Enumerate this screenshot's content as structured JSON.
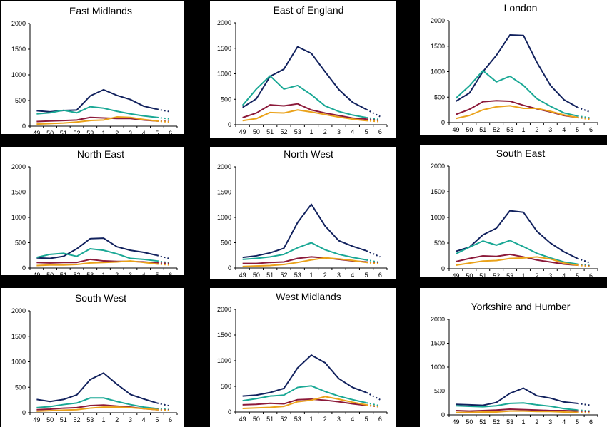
{
  "series_colors": [
    "#12225e",
    "#1aa895",
    "#8c1a3a",
    "#eaa21a"
  ],
  "chart_data": [
    {
      "type": "line",
      "title": "East Midlands",
      "categories": [
        "49",
        "50",
        "51",
        "52",
        "53",
        "1",
        "2",
        "3",
        "4",
        "5",
        "6"
      ],
      "y_ticks": [
        "0",
        "500",
        "1000",
        "1500",
        "2000"
      ],
      "ylim": [
        0,
        2000
      ],
      "grid": false,
      "legend": "none",
      "series": [
        {
          "values": [
            300,
            280,
            305,
            315,
            590,
            710,
            600,
            520,
            390,
            330,
            280
          ]
        },
        {
          "values": [
            240,
            260,
            310,
            260,
            380,
            350,
            290,
            240,
            200,
            170,
            140
          ]
        },
        {
          "values": [
            90,
            100,
            110,
            120,
            170,
            160,
            150,
            150,
            120,
            100,
            90
          ]
        },
        {
          "values": [
            40,
            50,
            60,
            80,
            110,
            120,
            180,
            170,
            130,
            100,
            80
          ]
        }
      ]
    },
    {
      "type": "line",
      "title": "East of England",
      "categories": [
        "49",
        "50",
        "51",
        "52",
        "53",
        "1",
        "2",
        "3",
        "4",
        "5",
        "6"
      ],
      "y_ticks": [
        "0",
        "500",
        "1000",
        "1500",
        "2000"
      ],
      "ylim": [
        0,
        2000
      ],
      "grid": false,
      "legend": "none",
      "series": [
        {
          "values": [
            340,
            510,
            950,
            1090,
            1530,
            1400,
            1040,
            690,
            440,
            300,
            160
          ]
        },
        {
          "values": [
            380,
            700,
            960,
            700,
            770,
            590,
            370,
            260,
            190,
            140,
            100
          ]
        },
        {
          "values": [
            140,
            230,
            390,
            370,
            410,
            290,
            230,
            180,
            130,
            110,
            80
          ]
        },
        {
          "values": [
            80,
            120,
            240,
            230,
            290,
            250,
            200,
            150,
            110,
            80,
            60
          ]
        }
      ]
    },
    {
      "type": "line",
      "title": "London",
      "categories": [
        "49",
        "50",
        "51",
        "52",
        "53",
        "1",
        "2",
        "3",
        "4",
        "5",
        "6"
      ],
      "y_ticks": [
        "0",
        "500",
        "1000",
        "1500",
        "2000"
      ],
      "ylim": [
        0,
        2000
      ],
      "grid": false,
      "legend": "none",
      "series": [
        {
          "values": [
            420,
            580,
            1000,
            1320,
            1720,
            1710,
            1180,
            730,
            450,
            300,
            200
          ]
        },
        {
          "values": [
            480,
            720,
            1020,
            800,
            910,
            730,
            470,
            320,
            190,
            130,
            90
          ]
        },
        {
          "values": [
            160,
            260,
            410,
            430,
            420,
            340,
            270,
            210,
            140,
            100,
            70
          ]
        },
        {
          "values": [
            80,
            140,
            250,
            310,
            330,
            280,
            280,
            220,
            150,
            100,
            60
          ]
        }
      ]
    },
    {
      "type": "line",
      "title": "North East",
      "categories": [
        "49",
        "50",
        "51",
        "52",
        "53",
        "1",
        "2",
        "3",
        "4",
        "5",
        "6"
      ],
      "y_ticks": [
        "0",
        "500",
        "1000",
        "1500",
        "2000"
      ],
      "ylim": [
        0,
        2000
      ],
      "grid": false,
      "legend": "none",
      "series": [
        {
          "values": [
            200,
            190,
            230,
            380,
            580,
            590,
            420,
            350,
            310,
            250,
            180
          ]
        },
        {
          "values": [
            210,
            270,
            290,
            230,
            380,
            350,
            280,
            190,
            170,
            140,
            100
          ]
        },
        {
          "values": [
            110,
            100,
            110,
            110,
            170,
            140,
            130,
            130,
            120,
            100,
            90
          ]
        },
        {
          "values": [
            50,
            60,
            60,
            70,
            100,
            110,
            120,
            140,
            110,
            80,
            60
          ]
        }
      ]
    },
    {
      "type": "line",
      "title": "North West",
      "categories": [
        "49",
        "50",
        "51",
        "52",
        "53",
        "1",
        "2",
        "3",
        "4",
        "5",
        "6"
      ],
      "y_ticks": [
        "0",
        "500",
        "1000",
        "1500",
        "2000"
      ],
      "ylim": [
        0,
        2000
      ],
      "grid": false,
      "legend": "none",
      "series": [
        {
          "values": [
            210,
            240,
            300,
            390,
            900,
            1260,
            830,
            540,
            430,
            340,
            220
          ]
        },
        {
          "values": [
            170,
            190,
            220,
            270,
            400,
            500,
            360,
            270,
            210,
            160,
            110
          ]
        },
        {
          "values": [
            90,
            90,
            110,
            120,
            190,
            220,
            200,
            170,
            140,
            120,
            90
          ]
        },
        {
          "values": [
            30,
            40,
            50,
            70,
            110,
            160,
            200,
            180,
            150,
            110,
            80
          ]
        }
      ]
    },
    {
      "type": "line",
      "title": "South East",
      "categories": [
        "49",
        "50",
        "51",
        "52",
        "53",
        "1",
        "2",
        "3",
        "4",
        "5",
        "6"
      ],
      "y_ticks": [
        "0",
        "500",
        "1000",
        "1500",
        "2000"
      ],
      "ylim": [
        0,
        2000
      ],
      "grid": false,
      "legend": "none",
      "series": [
        {
          "values": [
            340,
            420,
            660,
            790,
            1130,
            1100,
            730,
            500,
            330,
            200,
            110
          ]
        },
        {
          "values": [
            290,
            420,
            540,
            460,
            550,
            430,
            300,
            210,
            130,
            90,
            60
          ]
        },
        {
          "values": [
            140,
            200,
            250,
            240,
            280,
            230,
            170,
            130,
            90,
            70,
            50
          ]
        },
        {
          "values": [
            70,
            110,
            150,
            160,
            200,
            210,
            230,
            190,
            110,
            70,
            40
          ]
        }
      ]
    },
    {
      "type": "line",
      "title": "South West",
      "categories": [
        "49",
        "50",
        "51",
        "52",
        "53",
        "1",
        "2",
        "3",
        "4",
        "5",
        "6"
      ],
      "y_ticks": [
        "0",
        "500",
        "1000",
        "1500",
        "2000"
      ],
      "ylim": [
        0,
        2000
      ],
      "grid": false,
      "legend": "none",
      "series": [
        {
          "values": [
            260,
            220,
            260,
            350,
            650,
            780,
            560,
            360,
            270,
            190,
            130
          ]
        },
        {
          "values": [
            100,
            120,
            160,
            190,
            290,
            290,
            220,
            160,
            110,
            80,
            60
          ]
        },
        {
          "values": [
            60,
            70,
            90,
            100,
            140,
            150,
            130,
            110,
            80,
            60,
            50
          ]
        },
        {
          "values": [
            30,
            40,
            50,
            60,
            90,
            110,
            110,
            100,
            80,
            60,
            40
          ]
        }
      ]
    },
    {
      "type": "line",
      "title": "West Midlands",
      "categories": [
        "49",
        "50",
        "51",
        "52",
        "53",
        "1",
        "2",
        "3",
        "4",
        "5",
        "6"
      ],
      "y_ticks": [
        "0",
        "500",
        "1000",
        "1500",
        "2000"
      ],
      "ylim": [
        0,
        2000
      ],
      "grid": false,
      "legend": "none",
      "series": [
        {
          "values": [
            310,
            330,
            380,
            460,
            860,
            1110,
            960,
            650,
            480,
            380,
            240
          ]
        },
        {
          "values": [
            220,
            260,
            310,
            330,
            480,
            510,
            400,
            310,
            240,
            180,
            120
          ]
        },
        {
          "values": [
            140,
            150,
            170,
            160,
            240,
            250,
            230,
            200,
            160,
            130,
            100
          ]
        },
        {
          "values": [
            70,
            80,
            90,
            110,
            200,
            230,
            300,
            250,
            190,
            140,
            100
          ]
        }
      ]
    },
    {
      "type": "line",
      "title": "Yorkshire and Humber",
      "categories": [
        "49",
        "50",
        "51",
        "52",
        "53",
        "1",
        "2",
        "3",
        "4",
        "5",
        "6"
      ],
      "y_ticks": [
        "0",
        "500",
        "1000",
        "1500",
        "2000"
      ],
      "ylim": [
        0,
        2000
      ],
      "grid": false,
      "legend": "none",
      "series": [
        {
          "values": [
            220,
            210,
            200,
            260,
            450,
            560,
            400,
            350,
            270,
            240,
            200
          ]
        },
        {
          "values": [
            190,
            180,
            170,
            190,
            240,
            250,
            210,
            180,
            130,
            100,
            80
          ]
        },
        {
          "values": [
            90,
            80,
            90,
            100,
            120,
            110,
            100,
            90,
            90,
            80,
            70
          ]
        },
        {
          "values": [
            50,
            50,
            60,
            60,
            80,
            80,
            70,
            70,
            60,
            50,
            40
          ]
        }
      ]
    }
  ]
}
